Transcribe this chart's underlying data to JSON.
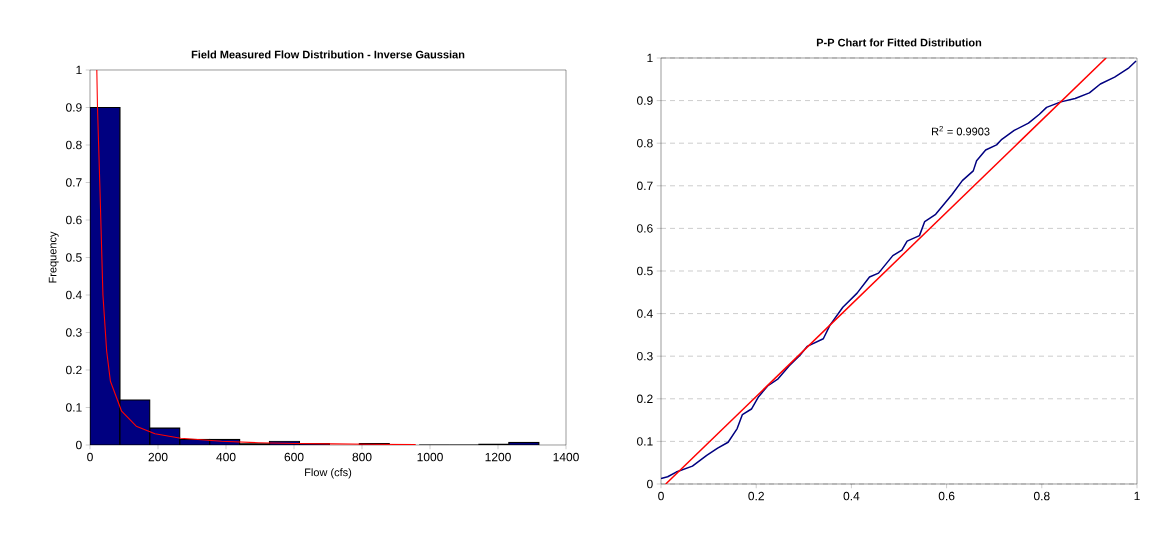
{
  "chart_data": [
    {
      "type": "histogram",
      "title": "Field Measured Flow Distribution - Inverse Gaussian",
      "xlabel": "Flow  (cfs)",
      "ylabel": "Frequency",
      "color": "#000080",
      "bins": [
        0,
        88,
        176,
        264,
        352,
        440,
        528,
        616,
        704,
        792,
        880,
        968,
        1056,
        1144,
        1232,
        1320
      ],
      "values": [
        0.9,
        0.12,
        0.045,
        0.015,
        0.015,
        0.003,
        0.01,
        0.004,
        null,
        0.004,
        null,
        0,
        0,
        0.002,
        0.007
      ],
      "series": [
        {
          "type": "line",
          "color": "#ff0000",
          "x": [
            20,
            22,
            29,
            38,
            49,
            60,
            93,
            136,
            191,
            267,
            387,
            496,
            605,
            713,
            822,
            958
          ],
          "values": [
            1.0,
            0.9,
            0.69,
            0.4,
            0.25,
            0.17,
            0.09,
            0.05,
            0.03,
            0.018,
            0.01,
            0.006,
            0.004,
            0.003,
            0.002,
            0.001
          ]
        }
      ],
      "xlim": [
        0,
        1400
      ],
      "ylim": [
        0,
        1
      ],
      "xticks": [
        0,
        200,
        400,
        600,
        800,
        1000,
        1200,
        1400
      ],
      "yticks": [
        0,
        0.1,
        0.2,
        0.3,
        0.4,
        0.5,
        0.6,
        0.7,
        0.8,
        0.9,
        1
      ]
    },
    {
      "type": "line",
      "title": "P-P Chart for Fitted Distribution",
      "grid": "y",
      "annotations": [
        "R$^{2}$ = 0.9903"
      ],
      "series": [
        {
          "color": "#000080",
          "x": [
            0,
            0.014,
            0.032,
            0.066,
            0.096,
            0.119,
            0.141,
            0.16,
            0.171,
            0.19,
            0.205,
            0.224,
            0.246,
            0.269,
            0.292,
            0.307,
            0.341,
            0.355,
            0.382,
            0.412,
            0.438,
            0.457,
            0.487,
            0.506,
            0.517,
            0.543,
            0.554,
            0.577,
            0.611,
            0.633,
            0.656,
            0.663,
            0.682,
            0.705,
            0.716,
            0.742,
            0.772,
            0.795,
            0.81,
            0.84,
            0.87,
            0.9,
            0.923,
            0.953,
            0.983,
            0.998
          ],
          "values": [
            0.013,
            0.017,
            0.028,
            0.042,
            0.067,
            0.084,
            0.098,
            0.13,
            0.163,
            0.176,
            0.205,
            0.23,
            0.247,
            0.277,
            0.302,
            0.323,
            0.341,
            0.373,
            0.415,
            0.448,
            0.486,
            0.495,
            0.536,
            0.549,
            0.57,
            0.583,
            0.616,
            0.633,
            0.679,
            0.712,
            0.735,
            0.759,
            0.784,
            0.796,
            0.809,
            0.83,
            0.847,
            0.868,
            0.884,
            0.897,
            0.905,
            0.918,
            0.939,
            0.955,
            0.977,
            0.993
          ]
        },
        {
          "type": "line",
          "color": "#ff0000",
          "x": [
            0.01,
            0.935
          ],
          "values": [
            0,
            1
          ]
        }
      ],
      "xlim": [
        0,
        1
      ],
      "ylim": [
        0,
        1
      ],
      "xticks": [
        0,
        0.2,
        0.4,
        0.6,
        0.8,
        1
      ],
      "yticks": [
        0,
        0.1,
        0.2,
        0.3,
        0.4,
        0.5,
        0.6,
        0.7,
        0.8,
        0.9,
        1
      ]
    }
  ]
}
